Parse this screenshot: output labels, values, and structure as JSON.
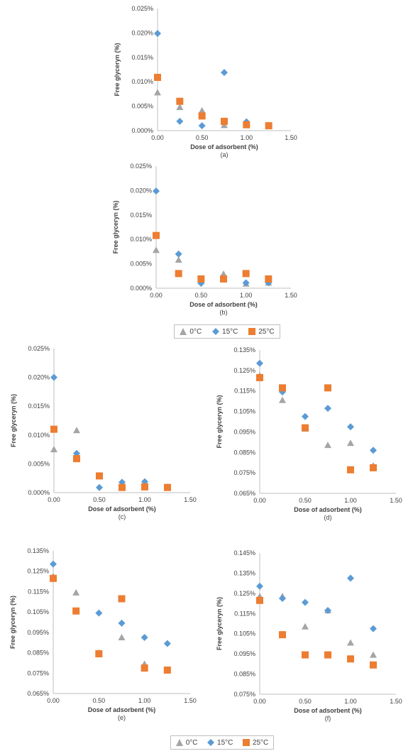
{
  "colors": {
    "s0": "#A5A5A5",
    "s15": "#5B9BD5",
    "s25": "#ED7D31",
    "axis": "#bfbfbf",
    "text": "#404040"
  },
  "legend": [
    {
      "name": "0°C",
      "marker": "triangle",
      "color": "#A5A5A5"
    },
    {
      "name": "15°C",
      "marker": "diamond",
      "color": "#5B9BD5"
    },
    {
      "name": "25°C",
      "marker": "square",
      "color": "#ED7D31"
    }
  ],
  "chart_data": [
    {
      "type": "scatter",
      "caption": "(a)",
      "xlabel": "Dose of adsorbent (%)",
      "ylabel": "Free glyceryn (%)",
      "xlim": [
        0,
        1.5
      ],
      "xticks": [
        "0.00",
        "0.50",
        "1.00",
        "1.50"
      ],
      "ylim": [
        0,
        0.025
      ],
      "yticks": [
        "0.000%",
        "0.005%",
        "0.010%",
        "0.015%",
        "0.020%",
        "0.025%"
      ],
      "series": [
        {
          "name": "0°C",
          "x": [
            0,
            0.25,
            0.5,
            0.75,
            1.0,
            1.25
          ],
          "y": [
            0.0078,
            0.0048,
            0.0041,
            0.0011,
            0.0012,
            0.0011
          ]
        },
        {
          "name": "15°C",
          "x": [
            0,
            0.25,
            0.5,
            0.75,
            1.0,
            1.25
          ],
          "y": [
            0.0199,
            0.0019,
            0.001,
            0.0119,
            0.0018,
            0.001
          ]
        },
        {
          "name": "25°C",
          "x": [
            0,
            0.25,
            0.5,
            0.75,
            1.0,
            1.25
          ],
          "y": [
            0.0109,
            0.006,
            0.003,
            0.0019,
            0.0012,
            0.001
          ]
        }
      ]
    },
    {
      "type": "scatter",
      "caption": "(b)",
      "xlabel": "Dose of adsorbent (%)",
      "ylabel": "Free glyceryn (%)",
      "xlim": [
        0,
        1.5
      ],
      "xticks": [
        "0.00",
        "0.50",
        "1.00",
        "1.50"
      ],
      "ylim": [
        0,
        0.025
      ],
      "yticks": [
        "0.000%",
        "0.005%",
        "0.010%",
        "0.015%",
        "0.020%",
        "0.025%"
      ],
      "series": [
        {
          "name": "0°C",
          "x": [
            0,
            0.25,
            0.5,
            0.75,
            1.0,
            1.25
          ],
          "y": [
            0.0078,
            0.0058,
            0.0015,
            0.0029,
            0.0009,
            0.0011
          ]
        },
        {
          "name": "15°C",
          "x": [
            0,
            0.25,
            0.5,
            0.75,
            1.0,
            1.25
          ],
          "y": [
            0.0199,
            0.007,
            0.001,
            0.002,
            0.0011,
            0.0011
          ]
        },
        {
          "name": "25°C",
          "x": [
            0,
            0.25,
            0.5,
            0.75,
            1.0,
            1.25
          ],
          "y": [
            0.0108,
            0.003,
            0.0019,
            0.0019,
            0.003,
            0.0019
          ]
        }
      ]
    },
    {
      "type": "scatter",
      "caption": "(c)",
      "xlabel": "Dose of adsorbent (%)",
      "ylabel": "Free glyceryn (%)",
      "xlim": [
        0,
        1.5
      ],
      "xticks": [
        "0.00",
        "0.50",
        "1.00",
        "1.50"
      ],
      "ylim": [
        0,
        0.025
      ],
      "yticks": [
        "0.000%",
        "0.005%",
        "0.010%",
        "0.015%",
        "0.020%",
        "0.025%"
      ],
      "series": [
        {
          "name": "0°C",
          "x": [
            0,
            0.25,
            0.5,
            0.75,
            1.0,
            1.25
          ],
          "y": [
            0.0075,
            0.0108,
            0.0029,
            0.0013,
            0.0013,
            0.001
          ]
        },
        {
          "name": "15°C",
          "x": [
            0,
            0.25,
            0.5,
            0.75,
            1.0,
            1.25
          ],
          "y": [
            0.02,
            0.0068,
            0.0009,
            0.0018,
            0.0019,
            0.0009
          ]
        },
        {
          "name": "25°C",
          "x": [
            0,
            0.25,
            0.5,
            0.75,
            1.0,
            1.25
          ],
          "y": [
            0.011,
            0.0059,
            0.0029,
            0.0009,
            0.001,
            0.0009
          ]
        }
      ]
    },
    {
      "type": "scatter",
      "caption": "(d)",
      "xlabel": "Dose of adsorbent (%)",
      "ylabel": "Free glyceryn (%)",
      "xlim": [
        0,
        1.5
      ],
      "xticks": [
        "0.00",
        "0.50",
        "1.00",
        "1.50"
      ],
      "ylim": [
        0.065,
        0.135
      ],
      "yticks": [
        "0.065%",
        "0.075%",
        "0.085%",
        "0.095%",
        "0.105%",
        "0.115%",
        "0.125%",
        "0.135%"
      ],
      "series": [
        {
          "name": "0°C",
          "x": [
            0,
            0.25,
            0.5,
            0.75,
            1.0,
            1.25
          ],
          "y": [
            0.1225,
            0.1105,
            0.0965,
            0.0885,
            0.0895,
            0.0785
          ]
        },
        {
          "name": "15°C",
          "x": [
            0,
            0.25,
            0.5,
            0.75,
            1.0,
            1.25
          ],
          "y": [
            0.1285,
            0.1145,
            0.1025,
            0.1065,
            0.0975,
            0.086
          ]
        },
        {
          "name": "25°C",
          "x": [
            0,
            0.25,
            0.5,
            0.75,
            1.0,
            1.25
          ],
          "y": [
            0.1215,
            0.1165,
            0.097,
            0.1165,
            0.0765,
            0.0775
          ]
        }
      ]
    },
    {
      "type": "scatter",
      "caption": "(e)",
      "xlabel": "Dose of adsorbent (%)",
      "ylabel": "Free glyceryn (%)",
      "xlim": [
        0,
        1.5
      ],
      "xticks": [
        "0.00",
        "0.50",
        "1.00",
        "1.50"
      ],
      "ylim": [
        0.065,
        0.135
      ],
      "yticks": [
        "0.065%",
        "0.075%",
        "0.085%",
        "0.095%",
        "0.105%",
        "0.115%",
        "0.125%",
        "0.135%"
      ],
      "series": [
        {
          "name": "0°C",
          "x": [
            0,
            0.25,
            0.5,
            0.75,
            1.0,
            1.25
          ],
          "y": [
            0.1225,
            0.1145,
            0.085,
            0.0925,
            0.0795,
            0.0765
          ]
        },
        {
          "name": "15°C",
          "x": [
            0,
            0.25,
            0.5,
            0.75,
            1.0,
            1.25
          ],
          "y": [
            0.1285,
            0.1055,
            0.1045,
            0.0995,
            0.0925,
            0.0895
          ]
        },
        {
          "name": "25°C",
          "x": [
            0,
            0.25,
            0.5,
            0.75,
            1.0,
            1.25
          ],
          "y": [
            0.1215,
            0.1055,
            0.0845,
            0.1115,
            0.0775,
            0.0765
          ]
        }
      ]
    },
    {
      "type": "scatter",
      "caption": "(f)",
      "xlabel": "Dose of adsorbent (%)",
      "ylabel": "Free glyceryn (%)",
      "xlim": [
        0,
        1.5
      ],
      "xticks": [
        "0.00",
        "0.50",
        "1.00",
        "1.50"
      ],
      "ylim": [
        0.075,
        0.145
      ],
      "yticks": [
        "0.075%",
        "0.085%",
        "0.095%",
        "0.105%",
        "0.115%",
        "0.125%",
        "0.135%",
        "0.145%"
      ],
      "series": [
        {
          "name": "0°C",
          "x": [
            0,
            0.25,
            0.5,
            0.75,
            1.0,
            1.25
          ],
          "y": [
            0.1235,
            0.1235,
            0.1085,
            0.1165,
            0.1005,
            0.0945
          ]
        },
        {
          "name": "15°C",
          "x": [
            0,
            0.25,
            0.5,
            0.75,
            1.0,
            1.25
          ],
          "y": [
            0.1285,
            0.1225,
            0.1205,
            0.1165,
            0.1325,
            0.1075
          ]
        },
        {
          "name": "25°C",
          "x": [
            0,
            0.25,
            0.5,
            0.75,
            1.0,
            1.25
          ],
          "y": [
            0.1215,
            0.1045,
            0.0945,
            0.0945,
            0.0925,
            0.0895
          ]
        }
      ]
    }
  ]
}
